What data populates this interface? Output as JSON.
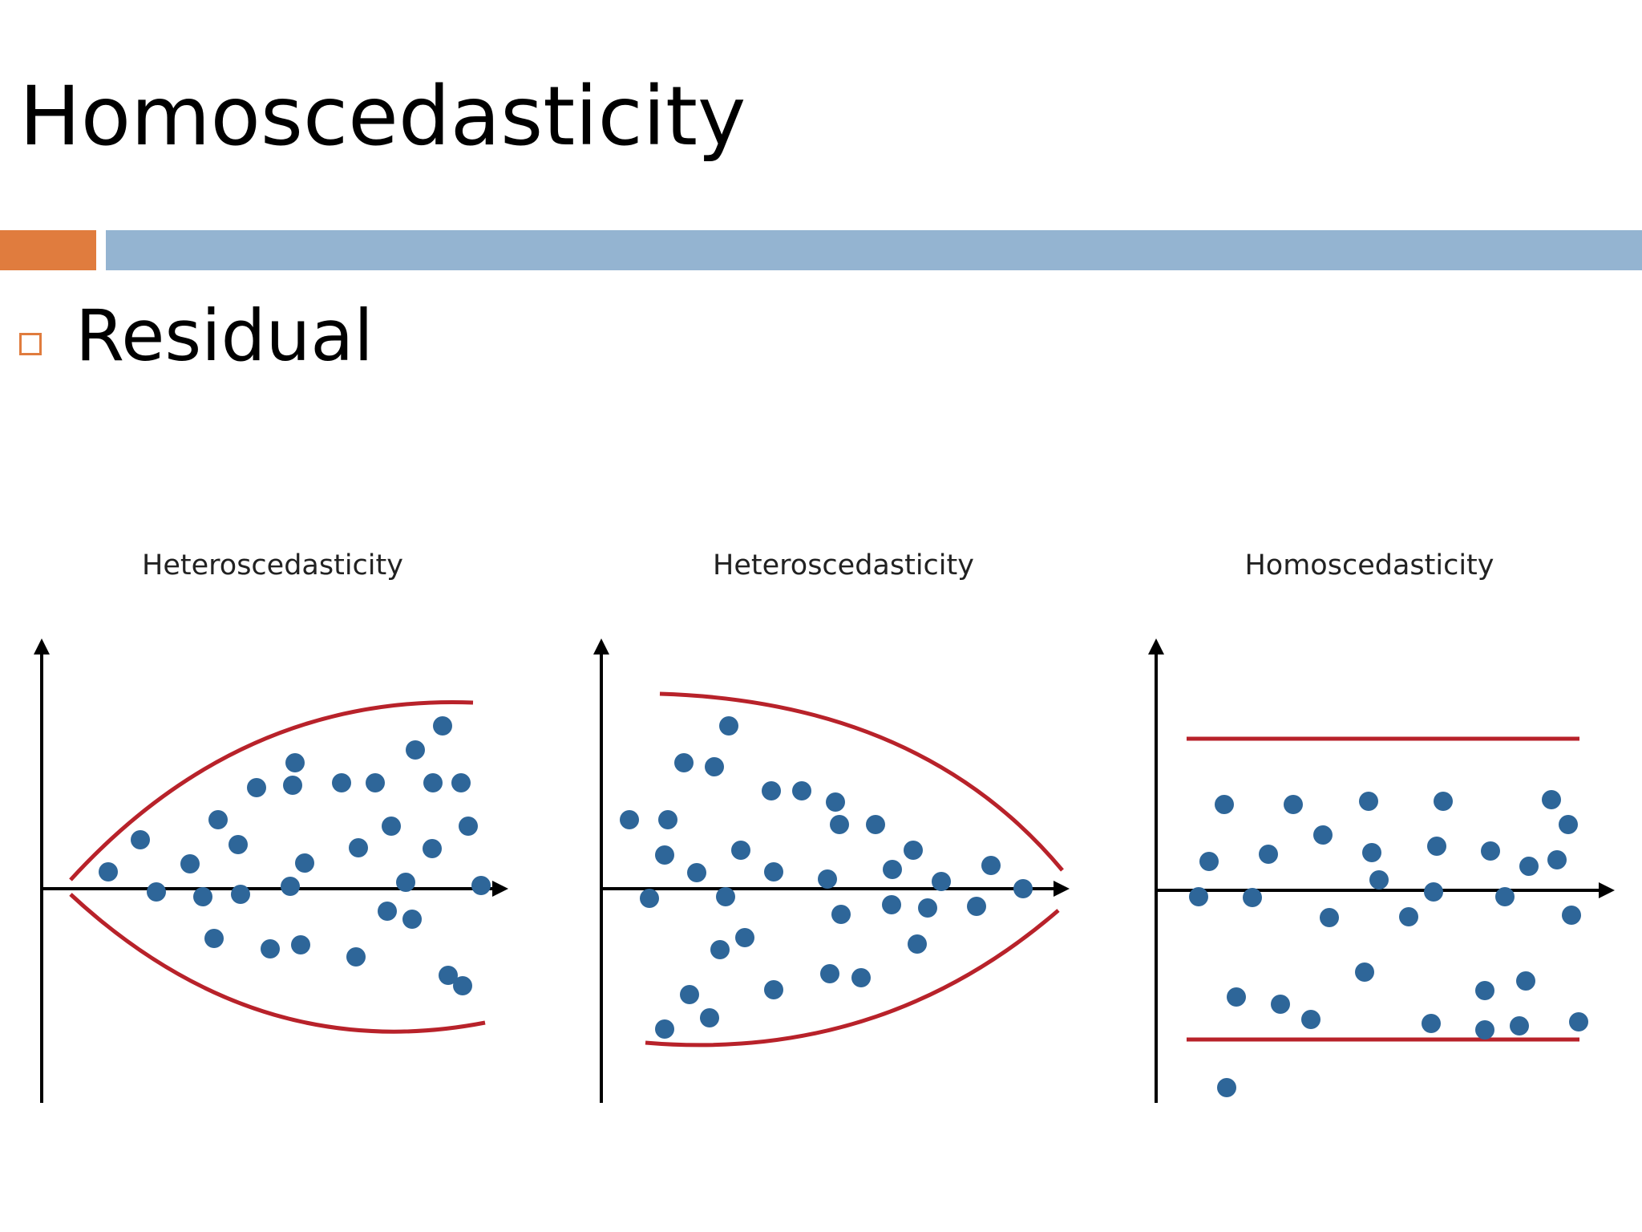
{
  "slide": {
    "title": "Homoscedasticity",
    "bullet": "Residual",
    "colors": {
      "accent_orange": "#e07c3e",
      "accent_blue": "#94b4d1",
      "point": "#2e6699",
      "boundary": "#b8222a",
      "axis": "#000000"
    }
  },
  "panels": [
    {
      "title": "Heteroscedasticity",
      "pattern": "spread widening toward the right"
    },
    {
      "title": "Heteroscedasticity",
      "pattern": "spread narrowing toward the right"
    },
    {
      "title": "Homoscedasticity",
      "pattern": "constant spread"
    }
  ]
}
